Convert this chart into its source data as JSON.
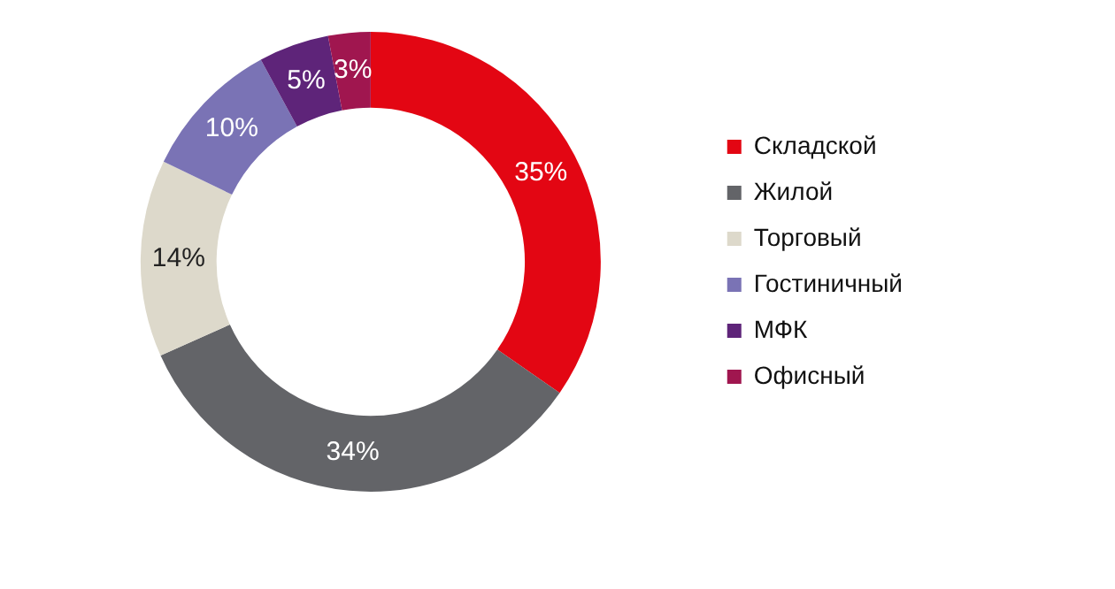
{
  "chart_data": {
    "type": "donut",
    "categories": [
      "Складской",
      "Жилой",
      "Торговый",
      "Гостиничный",
      "МФК",
      "Офисный"
    ],
    "values": [
      35,
      34,
      14,
      10,
      5,
      3
    ],
    "colors": [
      "#e30613",
      "#636468",
      "#ddd9cb",
      "#7a73b5",
      "#5e2479",
      "#a0164f"
    ],
    "value_labels": [
      "35%",
      "34%",
      "14%",
      "10%",
      "5%",
      "3%"
    ],
    "legend": "right"
  }
}
